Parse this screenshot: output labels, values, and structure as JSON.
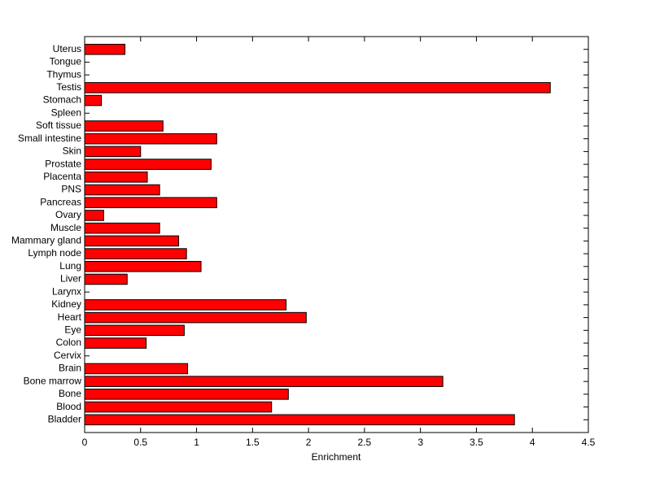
{
  "chart_data": {
    "type": "barh",
    "xlabel": "Enrichment",
    "categories": [
      "Bladder",
      "Blood",
      "Bone",
      "Bone marrow",
      "Brain",
      "Cervix",
      "Colon",
      "Eye",
      "Heart",
      "Kidney",
      "Larynx",
      "Liver",
      "Lung",
      "Lymph node",
      "Mammary gland",
      "Muscle",
      "Ovary",
      "Pancreas",
      "PNS",
      "Placenta",
      "Prostate",
      "Skin",
      "Small intestine",
      "Soft tissue",
      "Spleen",
      "Stomach",
      "Testis",
      "Thymus",
      "Tongue",
      "Uterus"
    ],
    "values": [
      3.84,
      1.67,
      1.82,
      3.2,
      0.92,
      0,
      0.55,
      0.89,
      1.98,
      1.8,
      0,
      0.38,
      1.04,
      0.91,
      0.84,
      0.67,
      0.17,
      1.18,
      0.67,
      0.56,
      1.13,
      0.5,
      1.18,
      0.7,
      0,
      0.15,
      4.16,
      0,
      0,
      0.36
    ],
    "color": "#ff0000",
    "xlim": [
      0,
      4.5
    ],
    "xticks": [
      0,
      0.5,
      1,
      1.5,
      2,
      2.5,
      3,
      3.5,
      4,
      4.5
    ]
  }
}
